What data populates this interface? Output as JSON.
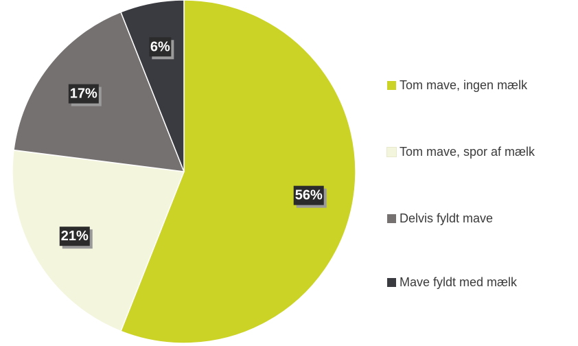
{
  "chart_data": {
    "type": "pie",
    "title": "",
    "categories": [
      "Tom mave, ingen mælk",
      "Tom mave, spor af mælk",
      "Delvis fyldt mave",
      "Mave fyldt med mælk"
    ],
    "values": [
      56,
      21,
      17,
      6
    ],
    "data_labels": [
      "56%",
      "21%",
      "17%",
      "6%"
    ],
    "colors": [
      "#cbd327",
      "#f4f5dd",
      "#767171",
      "#3a3a41"
    ],
    "start_angle_deg": 0,
    "direction": "clockwise",
    "legend_placement": "right"
  }
}
